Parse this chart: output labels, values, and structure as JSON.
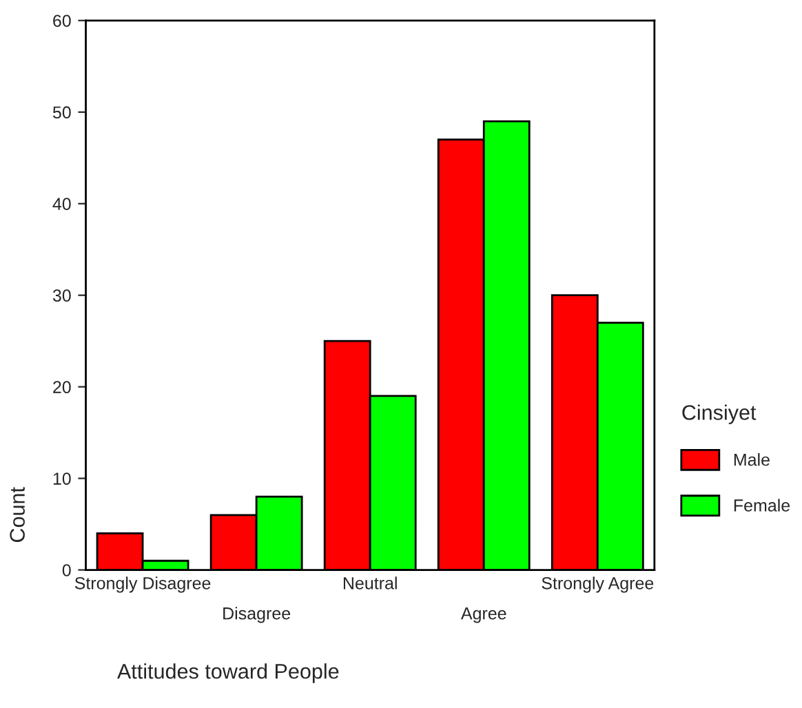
{
  "chart_data": {
    "type": "bar",
    "xlabel": "Attitudes toward People",
    "ylabel": "Count",
    "legend_title": "Cinsiyet",
    "categories": [
      "Strongly Disagree",
      "Disagree",
      "Neutral",
      "Agree",
      "Strongly Agree"
    ],
    "series": [
      {
        "name": "Male",
        "color": "#ff0000",
        "values": [
          4,
          6,
          25,
          47,
          30
        ]
      },
      {
        "name": "Female",
        "color": "#00ff00",
        "values": [
          1,
          8,
          19,
          49,
          27
        ]
      }
    ],
    "ylim": [
      0,
      60
    ],
    "yticks": [
      0,
      10,
      20,
      30,
      40,
      50,
      60
    ],
    "legend": "right",
    "grid": false
  }
}
